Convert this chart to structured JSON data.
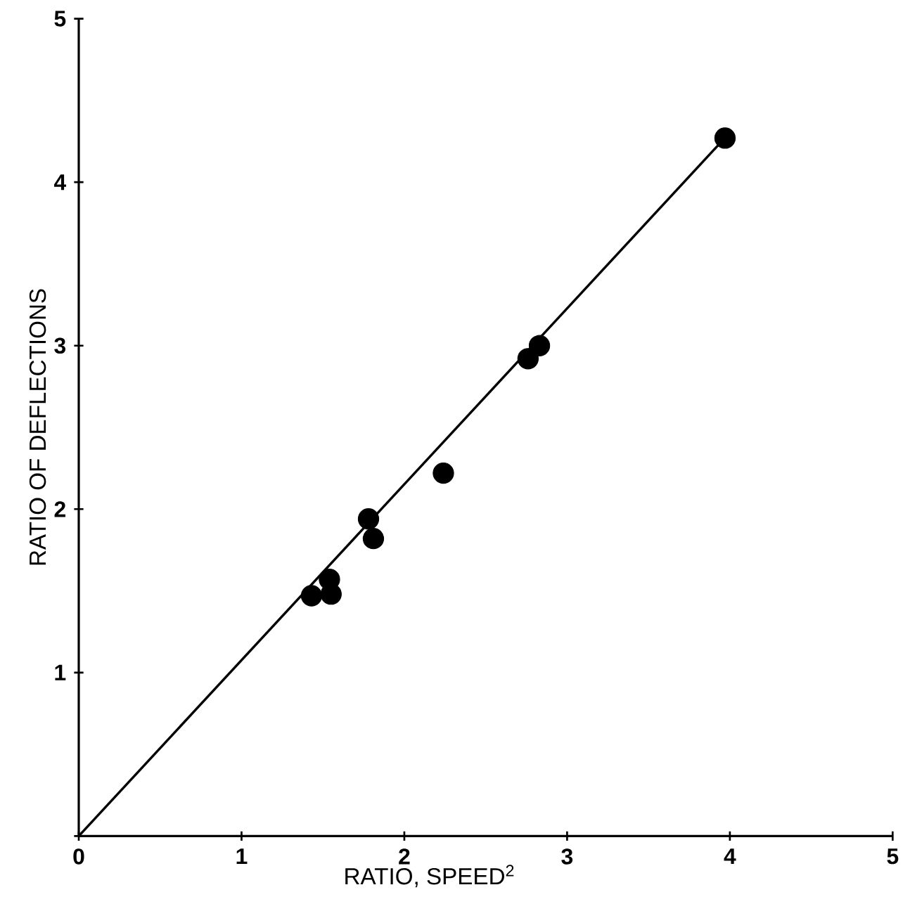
{
  "chart_data": {
    "type": "scatter",
    "xlabel": "RATIO, SPEED$^{2}$",
    "ylabel": "RATIO OF DEFLECTIONS",
    "xlim": [
      0,
      5
    ],
    "ylim": [
      0,
      5
    ],
    "xticks": [
      0,
      1,
      2,
      3,
      4,
      5
    ],
    "yticks": [
      {
        "value": 0,
        "label": null
      },
      1,
      2,
      3,
      4,
      5
    ],
    "grid": false,
    "series": [
      {
        "color": "#000000",
        "marker": "circle",
        "x": [
          3.97,
          2.83,
          2.76,
          2.24,
          1.78,
          1.81,
          1.54,
          1.55,
          1.43
        ],
        "values": [
          4.27,
          3.0,
          2.92,
          2.22,
          1.94,
          1.82,
          1.57,
          1.48,
          1.47
        ]
      },
      {
        "type": "line",
        "color": "#000000",
        "line_style": "solid",
        "x": [
          0,
          3.95
        ],
        "values": [
          0,
          4.25
        ]
      }
    ]
  }
}
